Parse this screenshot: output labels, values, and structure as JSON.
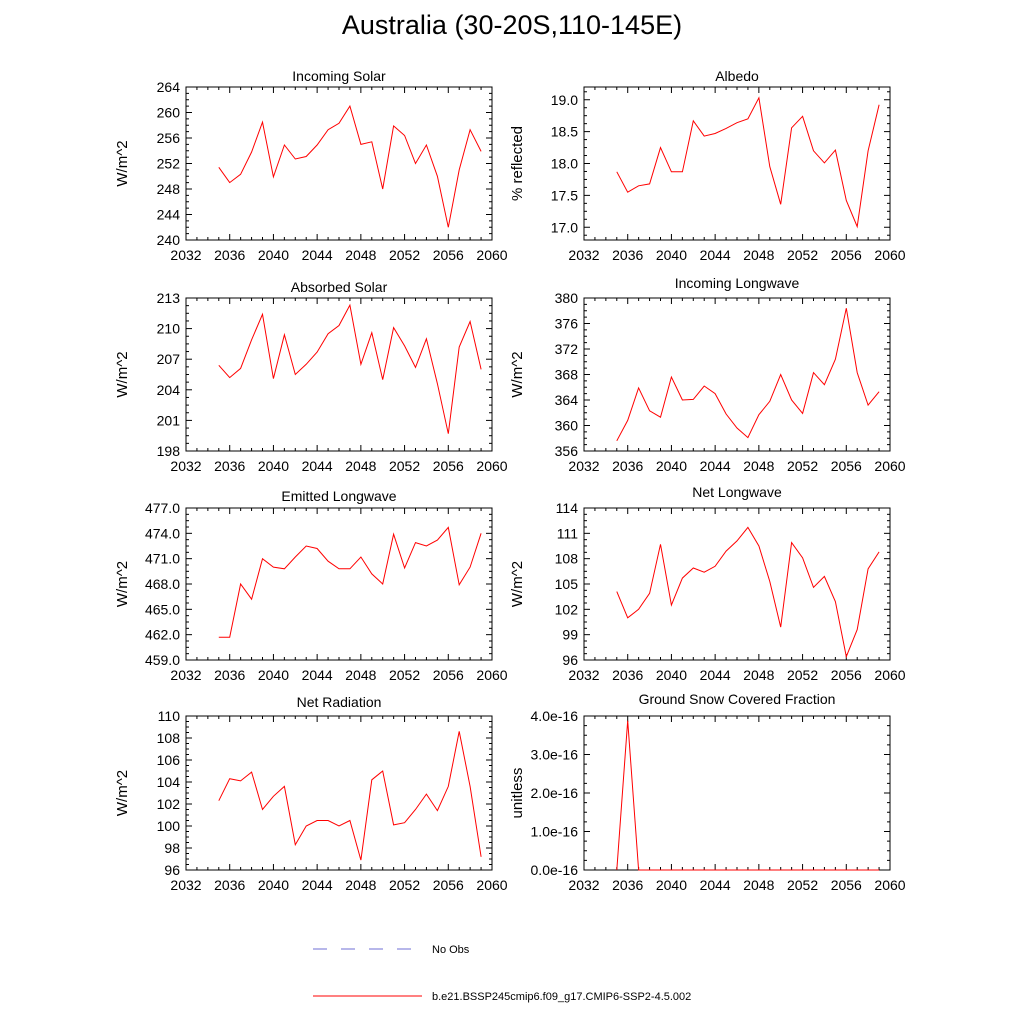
{
  "page": {
    "title": "Australia (30-20S,110-145E)"
  },
  "legend": {
    "obs_label": "No Obs",
    "model_label": "b.e21.BSSP245cmip6.f09_g17.CMIP6-SSP2-4.5.002",
    "obs_color": "#6f6fd6",
    "model_color": "#ff0000"
  },
  "chart_data": [
    {
      "type": "line",
      "title": "Incoming Solar",
      "ylabel": "W/m^2",
      "xlim": [
        2032,
        2060
      ],
      "xticks": [
        "2032",
        "2036",
        "2040",
        "2044",
        "2048",
        "2052",
        "2056",
        "2060"
      ],
      "ylim": [
        240,
        264
      ],
      "yticks": [
        "240",
        "244",
        "248",
        "252",
        "256",
        "260",
        "264"
      ],
      "x": [
        2035,
        2036,
        2037,
        2038,
        2039,
        2040,
        2041,
        2042,
        2043,
        2044,
        2045,
        2046,
        2047,
        2048,
        2049,
        2050,
        2051,
        2052,
        2053,
        2054,
        2055,
        2056,
        2057,
        2058,
        2059
      ],
      "series": [
        {
          "values": [
            251.4,
            249.0,
            250.3,
            253.8,
            258.5,
            249.9,
            254.9,
            252.7,
            253.1,
            254.9,
            257.3,
            258.3,
            261.0,
            255.0,
            255.4,
            248.0,
            257.9,
            256.4,
            252.0,
            254.9,
            250.0,
            242.0,
            251.0,
            257.3,
            253.9
          ]
        }
      ]
    },
    {
      "type": "line",
      "title": "Albedo",
      "ylabel": "% reflected",
      "xlim": [
        2032,
        2060
      ],
      "xticks": [
        "2032",
        "2036",
        "2040",
        "2044",
        "2048",
        "2052",
        "2056",
        "2060"
      ],
      "ylim": [
        16.8,
        19.2
      ],
      "yticks": [
        "17.0",
        "17.5",
        "18.0",
        "18.5",
        "19.0"
      ],
      "x": [
        2035,
        2036,
        2037,
        2038,
        2039,
        2040,
        2041,
        2042,
        2043,
        2044,
        2045,
        2046,
        2047,
        2048,
        2049,
        2050,
        2051,
        2052,
        2053,
        2054,
        2055,
        2056,
        2057,
        2058,
        2059
      ],
      "series": [
        {
          "values": [
            17.87,
            17.55,
            17.65,
            17.68,
            18.25,
            17.87,
            17.87,
            18.67,
            18.43,
            18.47,
            18.55,
            18.64,
            18.7,
            19.03,
            17.95,
            17.36,
            18.56,
            18.74,
            18.2,
            18.01,
            18.21,
            17.42,
            17.01,
            18.2,
            18.92
          ]
        }
      ]
    },
    {
      "type": "line",
      "title": "Absorbed Solar",
      "ylabel": "W/m^2",
      "xlim": [
        2032,
        2060
      ],
      "xticks": [
        "2032",
        "2036",
        "2040",
        "2044",
        "2048",
        "2052",
        "2056",
        "2060"
      ],
      "ylim": [
        198,
        213
      ],
      "yticks": [
        "198",
        "201",
        "204",
        "207",
        "210",
        "213"
      ],
      "x": [
        2035,
        2036,
        2037,
        2038,
        2039,
        2040,
        2041,
        2042,
        2043,
        2044,
        2045,
        2046,
        2047,
        2048,
        2049,
        2050,
        2051,
        2052,
        2053,
        2054,
        2055,
        2056,
        2057,
        2058,
        2059
      ],
      "series": [
        {
          "values": [
            206.4,
            205.2,
            206.1,
            208.9,
            211.4,
            205.1,
            209.4,
            205.5,
            206.5,
            207.7,
            209.5,
            210.3,
            212.3,
            206.5,
            209.6,
            205.0,
            210.1,
            208.3,
            206.2,
            209.0,
            204.6,
            199.7,
            208.2,
            210.7,
            206.0
          ]
        }
      ]
    },
    {
      "type": "line",
      "title": "Incoming Longwave",
      "ylabel": "W/m^2",
      "xlim": [
        2032,
        2060
      ],
      "xticks": [
        "2032",
        "2036",
        "2040",
        "2044",
        "2048",
        "2052",
        "2056",
        "2060"
      ],
      "ylim": [
        356,
        380
      ],
      "yticks": [
        "356",
        "360",
        "364",
        "368",
        "372",
        "376",
        "380"
      ],
      "x": [
        2035,
        2036,
        2037,
        2038,
        2039,
        2040,
        2041,
        2042,
        2043,
        2044,
        2045,
        2046,
        2047,
        2048,
        2049,
        2050,
        2051,
        2052,
        2053,
        2054,
        2055,
        2056,
        2057,
        2058,
        2059
      ],
      "series": [
        {
          "values": [
            357.6,
            360.8,
            365.9,
            362.3,
            361.3,
            367.6,
            364.0,
            364.1,
            366.2,
            365.0,
            361.8,
            359.6,
            358.1,
            361.7,
            363.8,
            368.0,
            364.0,
            361.9,
            368.3,
            366.4,
            370.4,
            378.4,
            368.3,
            363.2,
            365.3
          ]
        }
      ]
    },
    {
      "type": "line",
      "title": "Emitted Longwave",
      "ylabel": "W/m^2",
      "xlim": [
        2032,
        2060
      ],
      "xticks": [
        "2032",
        "2036",
        "2040",
        "2044",
        "2048",
        "2052",
        "2056",
        "2060"
      ],
      "ylim": [
        459,
        477
      ],
      "yticks": [
        "459.0",
        "462.0",
        "465.0",
        "468.0",
        "471.0",
        "474.0",
        "477.0"
      ],
      "x": [
        2035,
        2036,
        2037,
        2038,
        2039,
        2040,
        2041,
        2042,
        2043,
        2044,
        2045,
        2046,
        2047,
        2048,
        2049,
        2050,
        2051,
        2052,
        2053,
        2054,
        2055,
        2056,
        2057,
        2058,
        2059
      ],
      "series": [
        {
          "values": [
            461.7,
            461.7,
            468.0,
            466.2,
            471.0,
            470.0,
            469.8,
            471.2,
            472.5,
            472.2,
            470.7,
            469.8,
            469.8,
            471.2,
            469.2,
            468.0,
            473.9,
            469.9,
            472.9,
            472.5,
            473.2,
            474.7,
            467.9,
            470.0,
            474.0
          ]
        }
      ]
    },
    {
      "type": "line",
      "title": "Net Longwave",
      "ylabel": "W/m^2",
      "xlim": [
        2032,
        2060
      ],
      "xticks": [
        "2032",
        "2036",
        "2040",
        "2044",
        "2048",
        "2052",
        "2056",
        "2060"
      ],
      "ylim": [
        96,
        114
      ],
      "yticks": [
        "96",
        "99",
        "102",
        "105",
        "108",
        "111",
        "114"
      ],
      "x": [
        2035,
        2036,
        2037,
        2038,
        2039,
        2040,
        2041,
        2042,
        2043,
        2044,
        2045,
        2046,
        2047,
        2048,
        2049,
        2050,
        2051,
        2052,
        2053,
        2054,
        2055,
        2056,
        2057,
        2058,
        2059
      ],
      "series": [
        {
          "values": [
            104.1,
            101.0,
            102.0,
            103.9,
            109.7,
            102.5,
            105.7,
            106.9,
            106.4,
            107.1,
            108.9,
            110.1,
            111.7,
            109.5,
            105.3,
            99.9,
            109.9,
            108.1,
            104.6,
            105.9,
            102.9,
            96.4,
            99.6,
            106.8,
            108.8
          ]
        }
      ]
    },
    {
      "type": "line",
      "title": "Net Radiation",
      "ylabel": "W/m^2",
      "xlim": [
        2032,
        2060
      ],
      "xticks": [
        "2032",
        "2036",
        "2040",
        "2044",
        "2048",
        "2052",
        "2056",
        "2060"
      ],
      "ylim": [
        96,
        110
      ],
      "yticks": [
        "96",
        "98",
        "100",
        "102",
        "104",
        "106",
        "108",
        "110"
      ],
      "x": [
        2035,
        2036,
        2037,
        2038,
        2039,
        2040,
        2041,
        2042,
        2043,
        2044,
        2045,
        2046,
        2047,
        2048,
        2049,
        2050,
        2051,
        2052,
        2053,
        2054,
        2055,
        2056,
        2057,
        2058,
        2059
      ],
      "series": [
        {
          "values": [
            102.3,
            104.3,
            104.1,
            104.9,
            101.5,
            102.7,
            103.6,
            98.3,
            100.0,
            100.5,
            100.5,
            100.0,
            100.5,
            96.9,
            104.2,
            105.0,
            100.1,
            100.3,
            101.5,
            102.9,
            101.4,
            103.6,
            108.6,
            103.6,
            97.2
          ]
        }
      ]
    },
    {
      "type": "line",
      "title": "Ground Snow Covered Fraction",
      "ylabel": "unitless",
      "xlim": [
        2032,
        2060
      ],
      "xticks": [
        "2032",
        "2036",
        "2040",
        "2044",
        "2048",
        "2052",
        "2056",
        "2060"
      ],
      "ylim": [
        0,
        4e-16
      ],
      "yticks": [
        "0.0e-16",
        "1.0e-16",
        "2.0e-16",
        "3.0e-16",
        "4.0e-16"
      ],
      "x": [
        2035,
        2036,
        2037,
        2038,
        2039,
        2040,
        2041,
        2042,
        2043,
        2044,
        2045,
        2046,
        2047,
        2048,
        2049,
        2050,
        2051,
        2052,
        2053,
        2054,
        2055,
        2056,
        2057,
        2058,
        2059
      ],
      "series": [
        {
          "values": [
            0,
            3.88e-16,
            0,
            0,
            0,
            0,
            0,
            0,
            0,
            0,
            0,
            0,
            0,
            0,
            0,
            0,
            0,
            0,
            0,
            0,
            0,
            0,
            0,
            0,
            0
          ]
        }
      ]
    }
  ]
}
